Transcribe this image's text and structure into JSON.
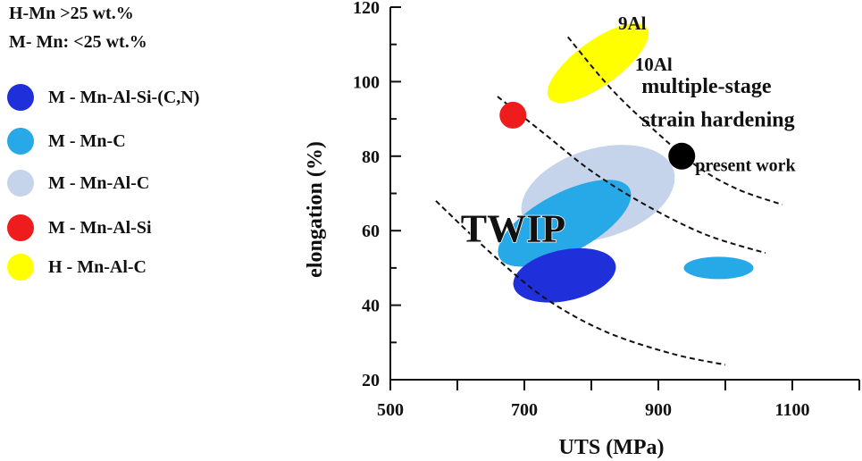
{
  "legend": {
    "header_lines": [
      "H-Mn >25 wt.%",
      "M- Mn: <25 wt.%"
    ],
    "items": [
      {
        "label": "M - Mn-Al-Si-(C,N)",
        "color": "#1f2fd9"
      },
      {
        "label": "M - Mn-C",
        "color": "#27a9e8"
      },
      {
        "label": "M - Mn-Al-C",
        "color": "#c5d4ea"
      },
      {
        "label": "M - Mn-Al-Si",
        "color": "#ee1c1c"
      },
      {
        "label": "H - Mn-Al-C",
        "color": "#ffff00"
      }
    ]
  },
  "chart_data": {
    "type": "scatter",
    "title": "",
    "xlabel": "UTS (MPa)",
    "ylabel": "elongation (%)",
    "xlim": [
      500,
      1200
    ],
    "ylim": [
      20,
      120
    ],
    "xticks": [
      500,
      700,
      900,
      1100
    ],
    "yticks": [
      20,
      40,
      60,
      80,
      100,
      120
    ],
    "grid": false,
    "regions": [
      {
        "name": "M - Mn-Al-C",
        "center": [
          810,
          70
        ],
        "radii": [
          118,
          12
        ],
        "angle": -17,
        "color": "#c5d4ea"
      },
      {
        "name": "M - Mn-C",
        "center": [
          760,
          62
        ],
        "radii": [
          110,
          8
        ],
        "angle": -28,
        "color": "#27a9e8"
      },
      {
        "name": "M - Mn-C",
        "center": [
          990,
          50
        ],
        "radii": [
          52,
          3
        ],
        "angle": 0,
        "color": "#27a9e8"
      },
      {
        "name": "M - Mn-Al-Si-(C,N)",
        "center": [
          760,
          48
        ],
        "radii": [
          38,
          14
        ],
        "angle": 78,
        "color": "#1f2fd9"
      },
      {
        "name": "H - Mn-Al-C",
        "center": [
          810,
          105
        ],
        "radii": [
          90,
          6
        ],
        "angle": -36,
        "color": "#ffff00"
      }
    ],
    "points": [
      {
        "name": "M - Mn-Al-Si",
        "x": 683,
        "y": 91,
        "color": "#ee1c1c"
      },
      {
        "name": "present work",
        "x": 935,
        "y": 80,
        "color": "#000000"
      }
    ],
    "trend_curves": [
      {
        "x": [
          568,
          650,
          730,
          820,
          920,
          1000
        ],
        "y": [
          68,
          54,
          42,
          33,
          27,
          24
        ]
      },
      {
        "x": [
          660,
          730,
          800,
          880,
          970,
          1060
        ],
        "y": [
          96,
          86,
          76,
          67,
          59,
          54
        ]
      },
      {
        "x": [
          765,
          830,
          900,
          960,
          1020,
          1085
        ],
        "y": [
          112,
          98,
          86,
          77,
          71,
          67
        ]
      }
    ],
    "annotations": [
      {
        "text": "TWIP",
        "x": 605,
        "y": 57
      },
      {
        "text": "9Al",
        "x": 840,
        "y": 114
      },
      {
        "text": "10Al",
        "x": 865,
        "y": 103
      },
      {
        "text": "multiple-stage",
        "x": 875,
        "y": 97
      },
      {
        "text": "strain hardening",
        "x": 875,
        "y": 88
      },
      {
        "text": "present work",
        "x": 955,
        "y": 76
      }
    ]
  }
}
